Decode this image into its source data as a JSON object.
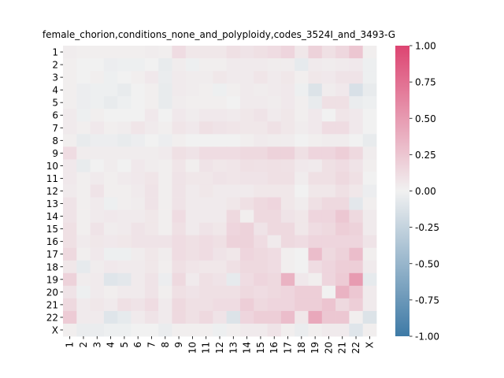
{
  "chart_data": {
    "type": "heatmap",
    "title": "female_chorion,conditions_none_and_polyploidy,codes_3524I_and_3493-G",
    "row_labels": [
      "1",
      "2",
      "3",
      "4",
      "5",
      "6",
      "7",
      "8",
      "9",
      "10",
      "11",
      "12",
      "13",
      "14",
      "15",
      "16",
      "17",
      "18",
      "19",
      "20",
      "21",
      "22",
      "X"
    ],
    "col_labels": [
      "1",
      "2",
      "3",
      "4",
      "5",
      "6",
      "7",
      "8",
      "9",
      "10",
      "11",
      "12",
      "13",
      "14",
      "15",
      "16",
      "17",
      "18",
      "19",
      "20",
      "21",
      "22",
      "X"
    ],
    "colorbar": {
      "min": -1.0,
      "max": 1.0,
      "ticks": [
        "-1.00",
        "-0.75",
        "-0.50",
        "-0.25",
        "0.00",
        "0.25",
        "0.50",
        "0.75",
        "1.00"
      ]
    },
    "colors": {
      "negative": "#3e7aa6",
      "neutral": "#f1f1f1",
      "positive": "#dd4471"
    },
    "values": [
      [
        0.03,
        0.02,
        0.02,
        0.02,
        0.02,
        0.02,
        0.03,
        0.02,
        0.12,
        0.06,
        0.06,
        0.06,
        0.1,
        0.08,
        0.1,
        0.12,
        0.16,
        0.06,
        0.18,
        0.1,
        0.15,
        0.25,
        0.02
      ],
      [
        0.02,
        0.0,
        0.0,
        -0.03,
        -0.02,
        -0.02,
        0.0,
        -0.05,
        0.03,
        -0.02,
        0.02,
        0.02,
        0.04,
        0.04,
        0.04,
        0.03,
        0.03,
        -0.06,
        0.04,
        0.03,
        0.04,
        0.05,
        -0.02
      ],
      [
        0.02,
        0.0,
        0.02,
        -0.02,
        0.0,
        0.02,
        0.05,
        -0.04,
        0.04,
        0.03,
        0.03,
        0.06,
        0.04,
        0.04,
        0.07,
        0.04,
        0.06,
        0.02,
        0.06,
        0.05,
        0.08,
        0.08,
        -0.02
      ],
      [
        0.02,
        -0.03,
        -0.02,
        -0.02,
        -0.05,
        0.0,
        0.02,
        -0.05,
        0.04,
        0.03,
        0.02,
        -0.02,
        0.02,
        0.04,
        0.03,
        0.04,
        0.05,
        -0.02,
        -0.12,
        0.03,
        0.05,
        -0.14,
        -0.05
      ],
      [
        0.02,
        -0.03,
        -0.02,
        -0.05,
        -0.02,
        0.0,
        0.02,
        -0.05,
        0.03,
        0.02,
        0.02,
        0.02,
        0.0,
        0.04,
        0.04,
        0.03,
        0.05,
        0.02,
        -0.05,
        0.1,
        0.1,
        -0.04,
        -0.02
      ],
      [
        0.04,
        -0.02,
        0.02,
        0.0,
        0.0,
        0.0,
        0.05,
        0.0,
        0.05,
        0.03,
        0.05,
        0.05,
        0.04,
        0.06,
        0.08,
        0.04,
        0.06,
        0.02,
        0.05,
        0.0,
        0.07,
        0.05,
        0.0
      ],
      [
        0.04,
        0.02,
        0.05,
        0.02,
        0.03,
        0.07,
        0.04,
        0.02,
        0.07,
        0.05,
        0.1,
        0.08,
        0.07,
        0.06,
        0.06,
        0.09,
        0.06,
        0.03,
        0.05,
        0.12,
        0.12,
        0.05,
        0.0
      ],
      [
        0.02,
        -0.05,
        -0.03,
        -0.03,
        -0.05,
        -0.03,
        0.0,
        -0.03,
        0.02,
        0.0,
        0.0,
        0.0,
        0.0,
        0.02,
        0.04,
        0.03,
        0.03,
        0.0,
        0.02,
        0.03,
        0.03,
        0.0,
        -0.05
      ],
      [
        0.12,
        0.03,
        0.03,
        0.03,
        0.03,
        0.03,
        0.03,
        0.04,
        0.1,
        0.08,
        0.12,
        0.12,
        0.12,
        0.14,
        0.14,
        0.18,
        0.18,
        0.1,
        0.16,
        0.16,
        0.2,
        0.14,
        0.03
      ],
      [
        0.05,
        -0.05,
        0.0,
        0.03,
        0.0,
        0.05,
        0.03,
        0.02,
        0.07,
        0.02,
        0.08,
        0.06,
        0.07,
        0.1,
        0.09,
        0.1,
        0.09,
        0.05,
        0.04,
        0.1,
        0.12,
        0.08,
        0.02
      ],
      [
        0.05,
        0.02,
        0.04,
        0.02,
        0.04,
        0.05,
        0.07,
        0.02,
        0.08,
        0.06,
        0.06,
        0.08,
        0.07,
        0.08,
        0.08,
        0.1,
        0.1,
        0.03,
        0.1,
        0.1,
        0.14,
        0.1,
        0.0
      ],
      [
        0.04,
        0.02,
        0.08,
        0.02,
        0.02,
        0.04,
        0.08,
        0.02,
        0.08,
        0.04,
        0.06,
        0.04,
        0.04,
        0.04,
        0.06,
        0.06,
        0.06,
        0.0,
        0.06,
        0.06,
        0.1,
        0.06,
        -0.03
      ],
      [
        0.08,
        0.02,
        0.04,
        -0.02,
        0.02,
        0.03,
        0.08,
        0.02,
        0.08,
        0.04,
        0.04,
        0.04,
        0.06,
        0.1,
        0.14,
        0.16,
        0.06,
        0.03,
        0.1,
        0.14,
        0.14,
        -0.08,
        0.02
      ],
      [
        0.08,
        0.02,
        0.04,
        0.05,
        0.04,
        0.04,
        0.06,
        0.02,
        0.12,
        0.04,
        0.04,
        0.04,
        0.14,
        0.02,
        0.14,
        0.14,
        0.08,
        0.06,
        0.16,
        0.16,
        0.24,
        0.14,
        0.04
      ],
      [
        0.1,
        0.02,
        0.08,
        0.03,
        0.04,
        0.08,
        0.06,
        0.02,
        0.1,
        0.04,
        0.08,
        0.06,
        0.16,
        0.18,
        0.08,
        0.14,
        0.14,
        0.06,
        0.12,
        0.14,
        0.2,
        0.18,
        0.04
      ],
      [
        0.1,
        0.04,
        0.06,
        0.05,
        0.06,
        0.08,
        0.08,
        0.08,
        0.12,
        0.1,
        0.12,
        0.1,
        0.18,
        0.18,
        0.12,
        0.04,
        0.14,
        0.12,
        0.16,
        0.16,
        0.16,
        0.16,
        0.08
      ],
      [
        0.14,
        0.02,
        0.05,
        -0.02,
        -0.02,
        0.03,
        0.06,
        0.03,
        0.12,
        0.1,
        0.12,
        0.08,
        0.06,
        0.16,
        0.14,
        0.12,
        0.02,
        0.0,
        0.3,
        0.14,
        0.18,
        0.3,
        0.02
      ],
      [
        0.06,
        -0.06,
        0.03,
        0.05,
        0.04,
        0.04,
        0.06,
        0.02,
        0.1,
        0.07,
        0.06,
        0.06,
        0.1,
        0.14,
        0.14,
        0.12,
        0.02,
        0.0,
        0.12,
        0.16,
        0.2,
        0.2,
        0.04
      ],
      [
        0.18,
        0.03,
        0.04,
        -0.1,
        -0.08,
        0.04,
        0.08,
        -0.03,
        0.14,
        0.04,
        0.1,
        0.08,
        -0.06,
        0.12,
        0.16,
        0.14,
        0.36,
        0.05,
        0.02,
        0.16,
        0.22,
        0.5,
        -0.06
      ],
      [
        0.08,
        -0.02,
        0.04,
        0.02,
        0.04,
        0.04,
        0.08,
        0.02,
        0.1,
        0.08,
        0.1,
        0.1,
        0.1,
        0.14,
        0.12,
        0.14,
        0.16,
        0.2,
        0.2,
        0.0,
        0.36,
        0.24,
        0.04
      ],
      [
        0.14,
        0.04,
        0.06,
        0.04,
        0.1,
        0.08,
        0.12,
        0.04,
        0.14,
        0.1,
        0.1,
        0.12,
        0.12,
        0.2,
        0.14,
        0.16,
        0.16,
        0.2,
        0.2,
        0.26,
        0.14,
        0.2,
        0.04
      ],
      [
        0.22,
        0.04,
        0.04,
        -0.1,
        -0.06,
        0.04,
        0.08,
        0.04,
        0.14,
        0.1,
        0.14,
        0.08,
        -0.12,
        0.16,
        0.2,
        0.2,
        0.3,
        0.06,
        0.42,
        0.24,
        0.24,
        0.02,
        -0.12
      ],
      [
        0.02,
        -0.04,
        -0.04,
        -0.02,
        -0.02,
        0.0,
        0.0,
        -0.04,
        0.02,
        0.02,
        0.02,
        -0.02,
        0.02,
        0.04,
        0.04,
        0.08,
        0.02,
        -0.04,
        0.02,
        0.04,
        0.04,
        -0.1,
        0.02
      ]
    ]
  }
}
